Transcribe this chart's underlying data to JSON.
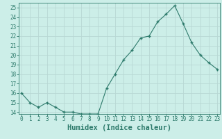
{
  "xlabel": "Humidex (Indice chaleur)",
  "x_values": [
    0,
    1,
    2,
    3,
    4,
    5,
    6,
    7,
    8,
    9,
    10,
    11,
    12,
    13,
    14,
    15,
    16,
    17,
    18,
    19,
    20,
    21,
    22,
    23
  ],
  "y_values": [
    16,
    15,
    14.5,
    15,
    14.5,
    14,
    14,
    13.8,
    13.8,
    13.8,
    16.5,
    18,
    19.5,
    20.5,
    21.8,
    22,
    23.5,
    24.3,
    25.2,
    23.3,
    21.3,
    20,
    19.2,
    18.5
  ],
  "line_color": "#2d7a6b",
  "marker_color": "#2d7a6b",
  "bg_color": "#cceee8",
  "grid_color": "#b8d8d4",
  "axis_color": "#2d7a6b",
  "ylim": [
    13.8,
    25.5
  ],
  "xlim": [
    -0.3,
    23.3
  ],
  "yticks": [
    14,
    15,
    16,
    17,
    18,
    19,
    20,
    21,
    22,
    23,
    24,
    25
  ],
  "xticks": [
    0,
    1,
    2,
    3,
    4,
    5,
    6,
    7,
    8,
    9,
    10,
    11,
    12,
    13,
    14,
    15,
    16,
    17,
    18,
    19,
    20,
    21,
    22,
    23
  ],
  "tick_fontsize": 5.5,
  "label_fontsize": 7.5
}
